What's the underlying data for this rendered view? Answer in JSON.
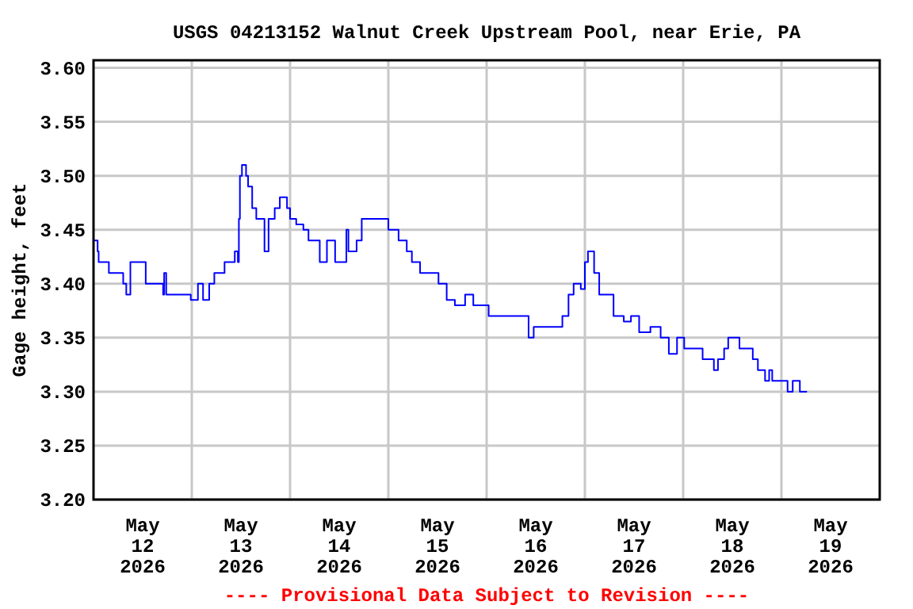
{
  "chart_data": {
    "type": "step",
    "title": "USGS 04213152 Walnut Creek Upstream Pool, near Erie, PA",
    "ylabel": "Gage height, feet",
    "annotations": [
      "---- Provisional Data Subject to Revision ----"
    ],
    "x": [
      "2026-05-12T00:00",
      "2026-05-12T01:00",
      "2026-05-12T01:15",
      "2026-05-12T03:00",
      "2026-05-12T03:45",
      "2026-05-12T06:45",
      "2026-05-12T07:15",
      "2026-05-12T08:00",
      "2026-05-12T09:00",
      "2026-05-12T11:15",
      "2026-05-12T12:45",
      "2026-05-12T15:45",
      "2026-05-12T17:00",
      "2026-05-12T17:15",
      "2026-05-12T17:45",
      "2026-05-12T21:45",
      "2026-05-12T23:45",
      "2026-05-13T01:30",
      "2026-05-13T02:45",
      "2026-05-13T04:15",
      "2026-05-13T05:30",
      "2026-05-13T08:00",
      "2026-05-13T10:30",
      "2026-05-13T11:15",
      "2026-05-13T11:30",
      "2026-05-13T11:45",
      "2026-05-13T12:15",
      "2026-05-13T13:15",
      "2026-05-13T13:45",
      "2026-05-13T14:45",
      "2026-05-13T15:45",
      "2026-05-13T16:45",
      "2026-05-13T17:45",
      "2026-05-13T18:45",
      "2026-05-13T20:15",
      "2026-05-13T21:30",
      "2026-05-13T23:15",
      "2026-05-14T00:00",
      "2026-05-14T01:30",
      "2026-05-14T03:15",
      "2026-05-14T04:30",
      "2026-05-14T07:15",
      "2026-05-14T09:00",
      "2026-05-14T11:00",
      "2026-05-14T13:45",
      "2026-05-14T14:15",
      "2026-05-14T16:15",
      "2026-05-14T17:30",
      "2026-05-14T22:45",
      "2026-05-15T00:00",
      "2026-05-15T02:30",
      "2026-05-15T04:30",
      "2026-05-15T05:45",
      "2026-05-15T07:45",
      "2026-05-15T10:15",
      "2026-05-15T12:15",
      "2026-05-15T14:15",
      "2026-05-15T16:15",
      "2026-05-15T18:45",
      "2026-05-15T20:45",
      "2026-05-15T22:30",
      "2026-05-16T00:30",
      "2026-05-16T07:30",
      "2026-05-16T10:15",
      "2026-05-16T11:30",
      "2026-05-16T15:30",
      "2026-05-16T18:30",
      "2026-05-16T20:00",
      "2026-05-16T21:15",
      "2026-05-16T23:00",
      "2026-05-17T00:00",
      "2026-05-17T00:45",
      "2026-05-17T01:45",
      "2026-05-17T02:15",
      "2026-05-17T03:30",
      "2026-05-17T05:30",
      "2026-05-17T07:00",
      "2026-05-17T09:30",
      "2026-05-17T11:15",
      "2026-05-17T13:15",
      "2026-05-17T16:00",
      "2026-05-17T18:30",
      "2026-05-17T20:30",
      "2026-05-17T22:30",
      "2026-05-18T00:15",
      "2026-05-18T04:45",
      "2026-05-18T07:30",
      "2026-05-18T08:30",
      "2026-05-18T10:00",
      "2026-05-18T11:00",
      "2026-05-18T12:45",
      "2026-05-18T13:45",
      "2026-05-18T15:45",
      "2026-05-18T17:00",
      "2026-05-18T18:15",
      "2026-05-18T20:00",
      "2026-05-18T21:00",
      "2026-05-18T21:45",
      "2026-05-19T00:45",
      "2026-05-19T01:30",
      "2026-05-19T02:45",
      "2026-05-19T04:30",
      "2026-05-19T06:15"
    ],
    "series": [
      {
        "color": "#0000ff",
        "values": [
          3.44,
          3.43,
          3.42,
          3.42,
          3.41,
          3.41,
          3.4,
          3.39,
          3.42,
          3.42,
          3.4,
          3.4,
          3.39,
          3.41,
          3.39,
          3.39,
          3.385,
          3.4,
          3.385,
          3.4,
          3.41,
          3.42,
          3.43,
          3.42,
          3.46,
          3.5,
          3.51,
          3.5,
          3.49,
          3.47,
          3.46,
          3.46,
          3.43,
          3.46,
          3.47,
          3.48,
          3.47,
          3.46,
          3.455,
          3.45,
          3.44,
          3.42,
          3.44,
          3.42,
          3.45,
          3.43,
          3.44,
          3.46,
          3.46,
          3.45,
          3.44,
          3.43,
          3.42,
          3.41,
          3.41,
          3.4,
          3.385,
          3.38,
          3.39,
          3.38,
          3.38,
          3.37,
          3.37,
          3.35,
          3.36,
          3.36,
          3.37,
          3.39,
          3.4,
          3.395,
          3.42,
          3.43,
          3.43,
          3.41,
          3.39,
          3.39,
          3.37,
          3.365,
          3.37,
          3.355,
          3.36,
          3.35,
          3.335,
          3.35,
          3.34,
          3.33,
          3.32,
          3.33,
          3.34,
          3.35,
          3.35,
          3.34,
          3.34,
          3.33,
          3.32,
          3.31,
          3.32,
          3.31,
          3.31,
          3.3,
          3.31,
          3.3,
          3.3
        ]
      }
    ],
    "xlim": [
      "2026-05-12T00:00",
      "2026-05-20T00:00"
    ],
    "xticks": [
      {
        "value": "2026-05-12T12:00",
        "label": "May\n12\n2026"
      },
      {
        "value": "2026-05-13T12:00",
        "label": "May\n13\n2026"
      },
      {
        "value": "2026-05-14T12:00",
        "label": "May\n14\n2026"
      },
      {
        "value": "2026-05-15T12:00",
        "label": "May\n15\n2026"
      },
      {
        "value": "2026-05-16T12:00",
        "label": "May\n16\n2026"
      },
      {
        "value": "2026-05-17T12:00",
        "label": "May\n17\n2026"
      },
      {
        "value": "2026-05-18T12:00",
        "label": "May\n18\n2026"
      },
      {
        "value": "2026-05-19T12:00",
        "label": "May\n19\n2026"
      },
      {
        "value": "2026-05-13T00:00",
        "label": null
      },
      {
        "value": "2026-05-14T00:00",
        "label": null
      },
      {
        "value": "2026-05-15T00:00",
        "label": null
      },
      {
        "value": "2026-05-16T00:00",
        "label": null
      },
      {
        "value": "2026-05-17T00:00",
        "label": null
      },
      {
        "value": "2026-05-18T00:00",
        "label": null
      },
      {
        "value": "2026-05-19T00:00",
        "label": null
      }
    ],
    "ylim": [
      3.2,
      3.607
    ],
    "yticks": [
      {
        "value": 3.2,
        "label": "3.20"
      },
      {
        "value": 3.25,
        "label": "3.25"
      },
      {
        "value": 3.3,
        "label": "3.30"
      },
      {
        "value": 3.35,
        "label": "3.35"
      },
      {
        "value": 3.4,
        "label": "3.40"
      },
      {
        "value": 3.45,
        "label": "3.45"
      },
      {
        "value": 3.5,
        "label": "3.50"
      },
      {
        "value": 3.55,
        "label": "3.55"
      },
      {
        "value": 3.6,
        "label": "3.60"
      }
    ],
    "grid": true
  }
}
